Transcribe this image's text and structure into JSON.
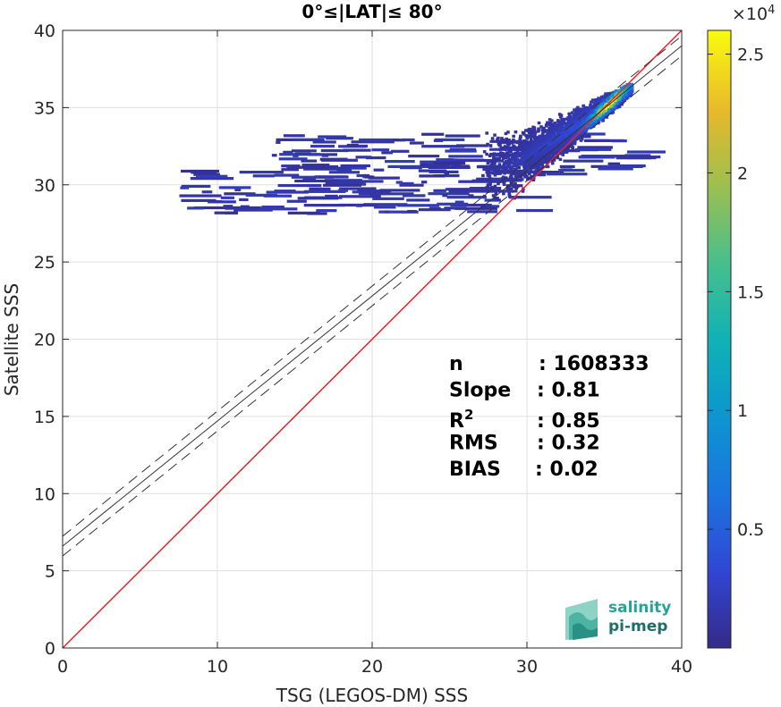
{
  "chart_data": {
    "type": "heatmap",
    "title": "0°≤|LAT|≤ 80°",
    "xlabel": "TSG (LEGOS-DM) SSS",
    "ylabel": "Satellite SSS",
    "xlim": [
      0,
      40
    ],
    "ylim": [
      0,
      40
    ],
    "xticks": [
      "0",
      "10",
      "20",
      "30",
      "40"
    ],
    "yticks": [
      "0",
      "5",
      "10",
      "15",
      "20",
      "25",
      "30",
      "35",
      "40"
    ],
    "grid": true,
    "identity_line": {
      "color": "#e8242b",
      "from": [
        0,
        0
      ],
      "to": [
        40,
        40
      ]
    },
    "fit_line": {
      "slope": 0.81,
      "intercept": 6.6,
      "x_range": [
        0,
        40
      ]
    },
    "fit_band": {
      "offset": 0.64
    },
    "density": {
      "ridge": [
        [
          24,
          30.2
        ],
        [
          27,
          30.8
        ],
        [
          29,
          31.4
        ],
        [
          31,
          32.6
        ],
        [
          33,
          33.8
        ],
        [
          34.5,
          34.9
        ],
        [
          36,
          35.8
        ],
        [
          36.7,
          36.4
        ]
      ],
      "peak": [
        35.2,
        35.3
      ],
      "peak_count": 26000
    },
    "stats": [
      {
        "label": "n",
        "value": ": 1608333"
      },
      {
        "label": "Slope",
        "value": ": 0.81"
      },
      {
        "label": "R",
        "sup": "2",
        "value": ": 0.85"
      },
      {
        "label": "RMS",
        "value": ": 0.32"
      },
      {
        "label": "BIAS",
        "value": ": 0.02"
      }
    ],
    "colorbar": {
      "colormap": "parula",
      "range": [
        0,
        26000
      ],
      "ticks": [
        {
          "value": 5000,
          "label": "0.5"
        },
        {
          "value": 10000,
          "label": "1"
        },
        {
          "value": 15000,
          "label": "1.5"
        },
        {
          "value": 20000,
          "label": "2"
        },
        {
          "value": 25000,
          "label": "2.5"
        }
      ],
      "multiplier": "×10",
      "exponent": "4"
    }
  },
  "logo": {
    "line1": "salinity",
    "line2": "pi-mep"
  },
  "colors": {
    "teal": "#26a595",
    "dark_teal": "#1e6e6a"
  }
}
